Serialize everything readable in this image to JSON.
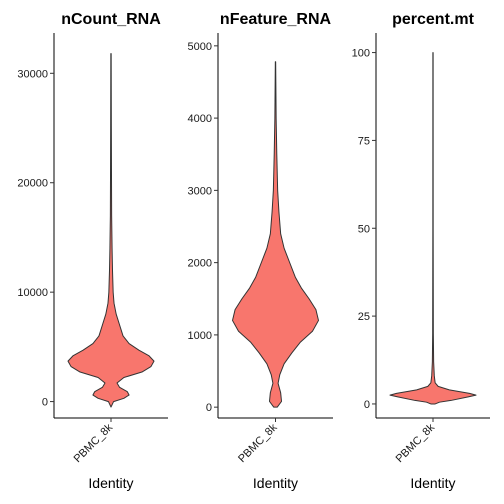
{
  "chart_data": [
    {
      "type": "violin",
      "title": "nCount_RNA",
      "xlabel": "Identity",
      "ylabel": "",
      "category": "PBMC_8k",
      "fill": "#F8766D",
      "ylim": [
        -1500,
        33500
      ],
      "yticks": [
        0,
        10000,
        20000,
        30000
      ],
      "ytick_labels": [
        "0",
        "10000",
        "20000",
        "30000"
      ],
      "density": [
        [
          -500,
          0
        ],
        [
          0,
          0.06
        ],
        [
          300,
          0.3
        ],
        [
          600,
          0.42
        ],
        [
          900,
          0.38
        ],
        [
          1300,
          0.2
        ],
        [
          1700,
          0.14
        ],
        [
          2200,
          0.3
        ],
        [
          2700,
          0.72
        ],
        [
          3200,
          0.93
        ],
        [
          3700,
          1.0
        ],
        [
          4200,
          0.88
        ],
        [
          4700,
          0.65
        ],
        [
          5300,
          0.42
        ],
        [
          6000,
          0.28
        ],
        [
          7000,
          0.2
        ],
        [
          8000,
          0.12
        ],
        [
          9000,
          0.07
        ],
        [
          10000,
          0.05
        ],
        [
          12000,
          0.035
        ],
        [
          14000,
          0.025
        ],
        [
          17000,
          0.015
        ],
        [
          20000,
          0.012
        ],
        [
          25000,
          0.008
        ],
        [
          31800,
          0.004
        ]
      ]
    },
    {
      "type": "violin",
      "title": "nFeature_RNA",
      "xlabel": "Identity",
      "ylabel": "",
      "category": "PBMC_8k",
      "fill": "#F8766D",
      "ylim": [
        -150,
        5150
      ],
      "yticks": [
        0,
        1000,
        2000,
        3000,
        4000,
        5000
      ],
      "ytick_labels": [
        "0",
        "1000",
        "2000",
        "3000",
        "4000",
        "5000"
      ],
      "density": [
        [
          0,
          0.04
        ],
        [
          80,
          0.14
        ],
        [
          200,
          0.12
        ],
        [
          330,
          0.06
        ],
        [
          450,
          0.1
        ],
        [
          600,
          0.2
        ],
        [
          750,
          0.38
        ],
        [
          900,
          0.58
        ],
        [
          1050,
          0.86
        ],
        [
          1200,
          1.0
        ],
        [
          1350,
          0.94
        ],
        [
          1500,
          0.78
        ],
        [
          1650,
          0.6
        ],
        [
          1800,
          0.46
        ],
        [
          2000,
          0.33
        ],
        [
          2200,
          0.2
        ],
        [
          2400,
          0.12
        ],
        [
          2700,
          0.08
        ],
        [
          3000,
          0.05
        ],
        [
          3500,
          0.03
        ],
        [
          4000,
          0.015
        ],
        [
          4500,
          0.008
        ],
        [
          4780,
          0.004
        ]
      ]
    },
    {
      "type": "violin",
      "title": "percent.mt",
      "xlabel": "Identity",
      "ylabel": "",
      "category": "PBMC_8k",
      "fill": "#F8766D",
      "ylim": [
        -4,
        105
      ],
      "yticks": [
        0,
        25,
        50,
        75,
        100
      ],
      "ytick_labels": [
        "0",
        "25",
        "50",
        "75",
        "100"
      ],
      "density": [
        [
          0,
          0.05
        ],
        [
          0.5,
          0.15
        ],
        [
          1,
          0.42
        ],
        [
          2,
          0.82
        ],
        [
          2.5,
          1.0
        ],
        [
          3,
          0.85
        ],
        [
          4,
          0.38
        ],
        [
          5,
          0.12
        ],
        [
          6,
          0.05
        ],
        [
          8,
          0.03
        ],
        [
          12,
          0.015
        ],
        [
          20,
          0.008
        ],
        [
          50,
          0.004
        ],
        [
          100,
          0.003
        ]
      ]
    }
  ]
}
